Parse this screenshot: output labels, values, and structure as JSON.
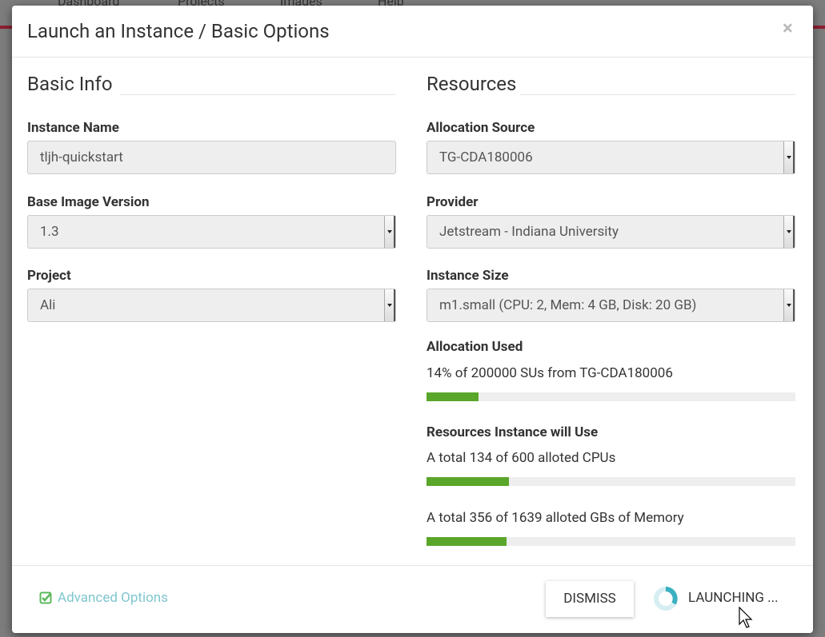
{
  "background_nav": [
    "Dashboard",
    "Projects",
    "Images",
    "Help"
  ],
  "modal": {
    "title": "Launch an Instance / Basic Options",
    "close": "×",
    "basic_info": {
      "heading": "Basic Info",
      "fields": [
        {
          "label": "Instance Name",
          "value": "tljh-quickstart",
          "kind": "input"
        },
        {
          "label": "Base Image Version",
          "value": "1.3",
          "kind": "select"
        },
        {
          "label": "Project",
          "value": "Ali",
          "kind": "select"
        }
      ]
    },
    "resources": {
      "heading": "Resources",
      "fields": [
        {
          "label": "Allocation Source",
          "value": "TG-CDA180006",
          "kind": "select"
        },
        {
          "label": "Provider",
          "value": "Jetstream - Indiana University",
          "kind": "select"
        },
        {
          "label": "Instance Size",
          "value": "m1.small (CPU: 2, Mem: 4 GB, Disk: 20 GB)",
          "kind": "select"
        }
      ],
      "allocation_used": {
        "heading": "Allocation Used",
        "percent": {
          "value": 14,
          "label": "14%"
        },
        "rest": " of 200000 SUs from TG-CDA180006"
      },
      "instance_use": {
        "heading": "Resources Instance will Use",
        "items": [
          {
            "prefix": "A total ",
            "used": 134,
            "middle": " of ",
            "total": 600,
            "suffix": " alloted CPUs"
          },
          {
            "prefix": "A total ",
            "used": 356,
            "middle": " of ",
            "total": 1639,
            "suffix": " alloted GBs of Memory"
          }
        ]
      }
    },
    "footer": {
      "advanced_options": "Advanced Options",
      "dismiss": "DISMISS",
      "launching": "LAUNCHING ..."
    }
  }
}
